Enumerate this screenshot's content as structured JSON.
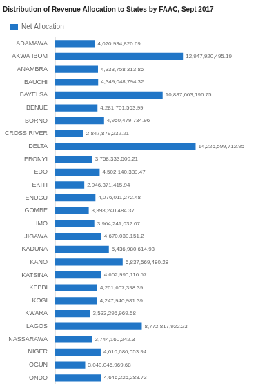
{
  "chart_data": {
    "type": "bar",
    "orientation": "horizontal",
    "title": "Distribution of Revenue Allocation to States by FAAC, Sept 2017",
    "categories": [
      "ADAMAWA",
      "AKWA IBOM",
      "ANAMBRA",
      "BAUCHI",
      "BAYELSA",
      "BENUE",
      "BORNO",
      "CROSS RIVER",
      "DELTA",
      "EBONYI",
      "EDO",
      "EKITI",
      "ENUGU",
      "GOMBE",
      "IMO",
      "JIGAWA",
      "KADUNA",
      "KANO",
      "KATSINA",
      "KEBBI",
      "KOGI",
      "KWARA",
      "LAGOS",
      "NASSARAWA",
      "NIGER",
      "OGUN",
      "ONDO"
    ],
    "series": [
      {
        "name": "Net Allocation",
        "color": "#2176C7",
        "values": [
          4020934820.69,
          12947920495.19,
          4333758313.86,
          4349048794.32,
          10887663196.75,
          4281701563.99,
          4950479734.96,
          2847879232.21,
          14226599712.95,
          3758333500.21,
          4502140389.47,
          2946371415.94,
          4076011272.48,
          3398240484.37,
          3964241032.07,
          4670030151.2,
          5436980614.93,
          6837569480.28,
          4662990116.57,
          4261607398.39,
          4247940981.39,
          3533295969.58,
          8772817922.23,
          3744160242.3,
          4610686053.94,
          3040046969.68,
          4646226288.73
        ],
        "value_labels": [
          "4,020,934,820.69",
          "12,947,920,495.19",
          "4,333,758,313.86",
          "4,349,048,794.32",
          "10,887,663,196.75",
          "4,281,701,563.99",
          "4,950,479,734.96",
          "2,847,879,232.21",
          "14,226,599,712.95",
          "3,758,333,500.21",
          "4,502,140,389.47",
          "2,946,371,415.94",
          "4,076,011,272.48",
          "3,398,240,484.37",
          "3,964,241,032.07",
          "4,670,030,151.2",
          "5,436,980,614.93",
          "6,837,569,480.28",
          "4,662,990,116.57",
          "4,261,607,398.39",
          "4,247,940,981.39",
          "3,533,295,969.58",
          "8,772,817,922.23",
          "3,744,160,242.3",
          "4,610,686,053.94",
          "3,040,046,969.68",
          "4,646,226,288.73"
        ]
      }
    ],
    "xlim": [
      0,
      16500000000
    ],
    "tick_labels": "y",
    "grid": false,
    "legend": "upper left",
    "data_labels": true
  }
}
